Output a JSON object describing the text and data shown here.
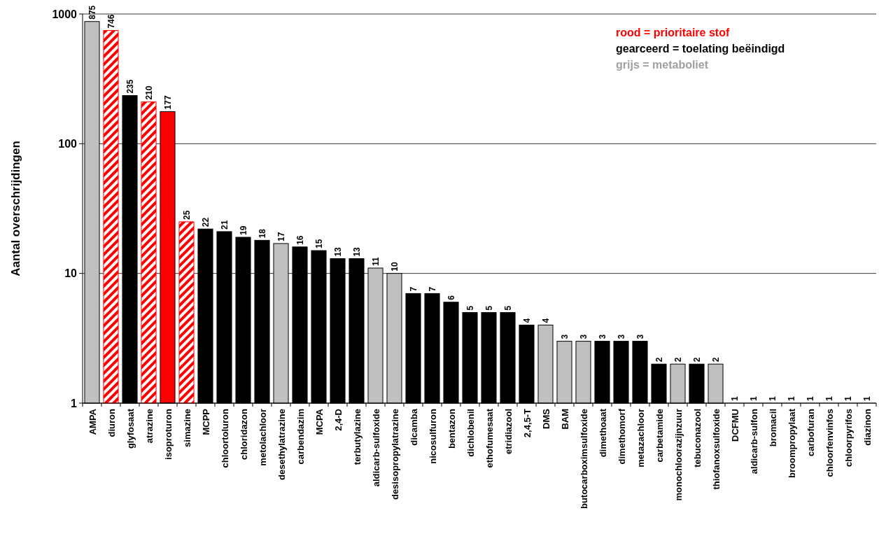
{
  "chart_data": {
    "type": "bar",
    "ylabel": "Aantal overschrijdingen",
    "log": "y",
    "ylim": [
      1,
      1000
    ],
    "yticks": [
      1,
      10,
      100,
      1000
    ],
    "grid": "y",
    "data_labels": true,
    "categories": [
      "AMPA",
      "diuron",
      "glyfosaat",
      "atrazine",
      "isoproturon",
      "simazine",
      "MCPP",
      "chloortoluron",
      "chloridazon",
      "metolachloor",
      "desethylatrazine",
      "carbendazim",
      "MCPA",
      "2,4-D",
      "terbutylazine",
      "aldicarb-sulfoxide",
      "desisopropylatrazine",
      "dicamba",
      "nicosulfuron",
      "bentazon",
      "dichlobenil",
      "ethofumesaat",
      "etridiazool",
      "2,4,5-T",
      "DMS",
      "BAM",
      "butocarboximsulfoxide",
      "dimethoaat",
      "dimethomorf",
      "metazachloor",
      "carbetamide",
      "monochloorazijnzuur",
      "tebuconazool",
      "thiofanoxsulfoxide",
      "DCFMU",
      "aldicarb-sulfon",
      "bromacil",
      "broompropylaat",
      "carbofuran",
      "chloorfenvinfos",
      "chloorpyrifos",
      "diazinon"
    ],
    "series": [
      {
        "values": [
          875,
          null,
          235,
          null,
          177,
          null,
          22,
          21,
          19,
          18,
          17,
          16,
          15,
          13,
          13,
          11,
          10,
          7,
          7,
          6,
          5,
          5,
          5,
          4,
          4,
          3,
          3,
          3,
          3,
          3,
          2,
          2,
          2,
          2,
          1,
          1,
          1,
          1,
          1,
          1,
          1,
          1
        ],
        "colors": [
          "#c0c0c0",
          null,
          "#000000",
          null,
          "#ff0000",
          null,
          "#000000",
          "#000000",
          "#000000",
          "#000000",
          "#c0c0c0",
          "#000000",
          "#000000",
          "#000000",
          "#000000",
          "#c0c0c0",
          "#c0c0c0",
          "#000000",
          "#000000",
          "#000000",
          "#000000",
          "#000000",
          "#000000",
          "#000000",
          "#c0c0c0",
          "#c0c0c0",
          "#c0c0c0",
          "#000000",
          "#000000",
          "#000000",
          "#000000",
          "#c0c0c0",
          "#000000",
          "#c0c0c0",
          "#000000",
          "#000000",
          "#000000",
          "#000000",
          "#000000",
          "#000000",
          "#000000",
          "#000000"
        ]
      },
      {
        "color": "#ff0000",
        "values": [
          null,
          746,
          null,
          210,
          null,
          25,
          null,
          null,
          null,
          null,
          null,
          null,
          null,
          null,
          null,
          null,
          null,
          null,
          null,
          null,
          null,
          null,
          null,
          null,
          null,
          null,
          null,
          null,
          null,
          null,
          null,
          null,
          null,
          null,
          null,
          null,
          null,
          null,
          null,
          null,
          null,
          null
        ]
      }
    ],
    "annotations": [
      "rood = prioritaire stof",
      "gearceerd = toelating beëindigd",
      "grijs = metaboliet"
    ]
  }
}
